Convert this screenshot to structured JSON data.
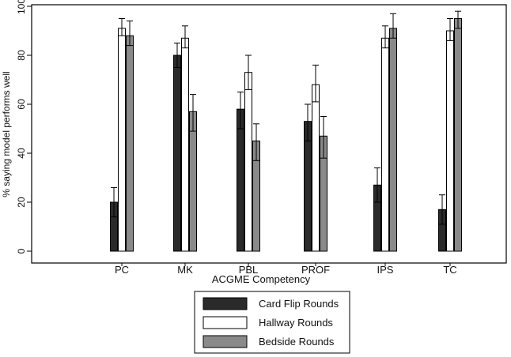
{
  "chart_data": {
    "type": "bar",
    "title": "",
    "xlabel": "ACGME Competency",
    "ylabel": "% saying model performs well",
    "ylim": [
      0,
      100
    ],
    "yticks": [
      0,
      20,
      40,
      60,
      80,
      100
    ],
    "grid": false,
    "legend_position": "bottom-center",
    "categories": [
      "PC",
      "MK",
      "PBL",
      "PROF",
      "IPS",
      "TC"
    ],
    "series": [
      {
        "name": "Card Flip Rounds",
        "color": "#2a2a2a",
        "values": [
          20,
          80,
          58,
          53,
          27,
          17
        ],
        "err_low": [
          14,
          75,
          50,
          45,
          20,
          11
        ],
        "err_high": [
          26,
          85,
          65,
          60,
          34,
          23
        ]
      },
      {
        "name": "Hallway Rounds",
        "color": "#ffffff",
        "values": [
          91,
          87,
          73,
          68,
          87,
          90
        ],
        "err_low": [
          88,
          83,
          66,
          61,
          83,
          86
        ],
        "err_high": [
          95,
          92,
          80,
          76,
          92,
          95
        ]
      },
      {
        "name": "Bedside Rounds",
        "color": "#8a8a8a",
        "values": [
          88,
          57,
          45,
          47,
          91,
          95
        ],
        "err_low": [
          84,
          49,
          37,
          38,
          87,
          91
        ],
        "err_high": [
          94,
          64,
          52,
          55,
          97,
          98
        ]
      }
    ]
  }
}
